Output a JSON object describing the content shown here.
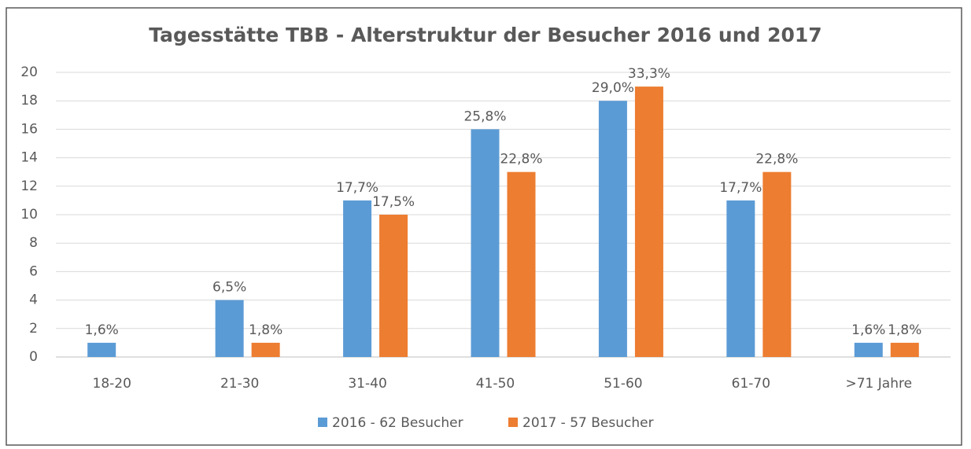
{
  "chart_data": {
    "type": "bar",
    "title": "Tagesstätte TBB - Alterstruktur der Besucher 2016 und 2017",
    "categories": [
      "18-20",
      "21-30",
      "31-40",
      "41-50",
      "51-60",
      "61-70",
      ">71 Jahre"
    ],
    "series": [
      {
        "name": "2016 - 62 Besucher",
        "color": "#5b9bd5",
        "values": [
          1,
          4,
          11,
          16,
          18,
          11,
          1
        ],
        "percent_values": [
          1.6,
          6.5,
          17.7,
          25.8,
          29.0,
          17.7,
          1.6
        ],
        "percent_labels": [
          "1,6%",
          "6,5%",
          "17,7%",
          "25,8%",
          "29,0%",
          "17,7%",
          "1,6%"
        ]
      },
      {
        "name": "2017 - 57 Besucher",
        "color": "#ed7d31",
        "values": [
          null,
          1,
          10,
          13,
          19,
          13,
          1
        ],
        "percent_values": [
          null,
          1.8,
          17.5,
          22.8,
          33.3,
          22.8,
          1.8
        ],
        "percent_labels": [
          null,
          "1,8%",
          "17,5%",
          "22,8%",
          "33,3%",
          "22,8%",
          "1,8%"
        ]
      }
    ],
    "ylim": [
      0,
      20
    ],
    "yticks": [
      0,
      2,
      4,
      6,
      8,
      10,
      12,
      14,
      16,
      18,
      20
    ],
    "grid": true,
    "legend": "bottom"
  }
}
